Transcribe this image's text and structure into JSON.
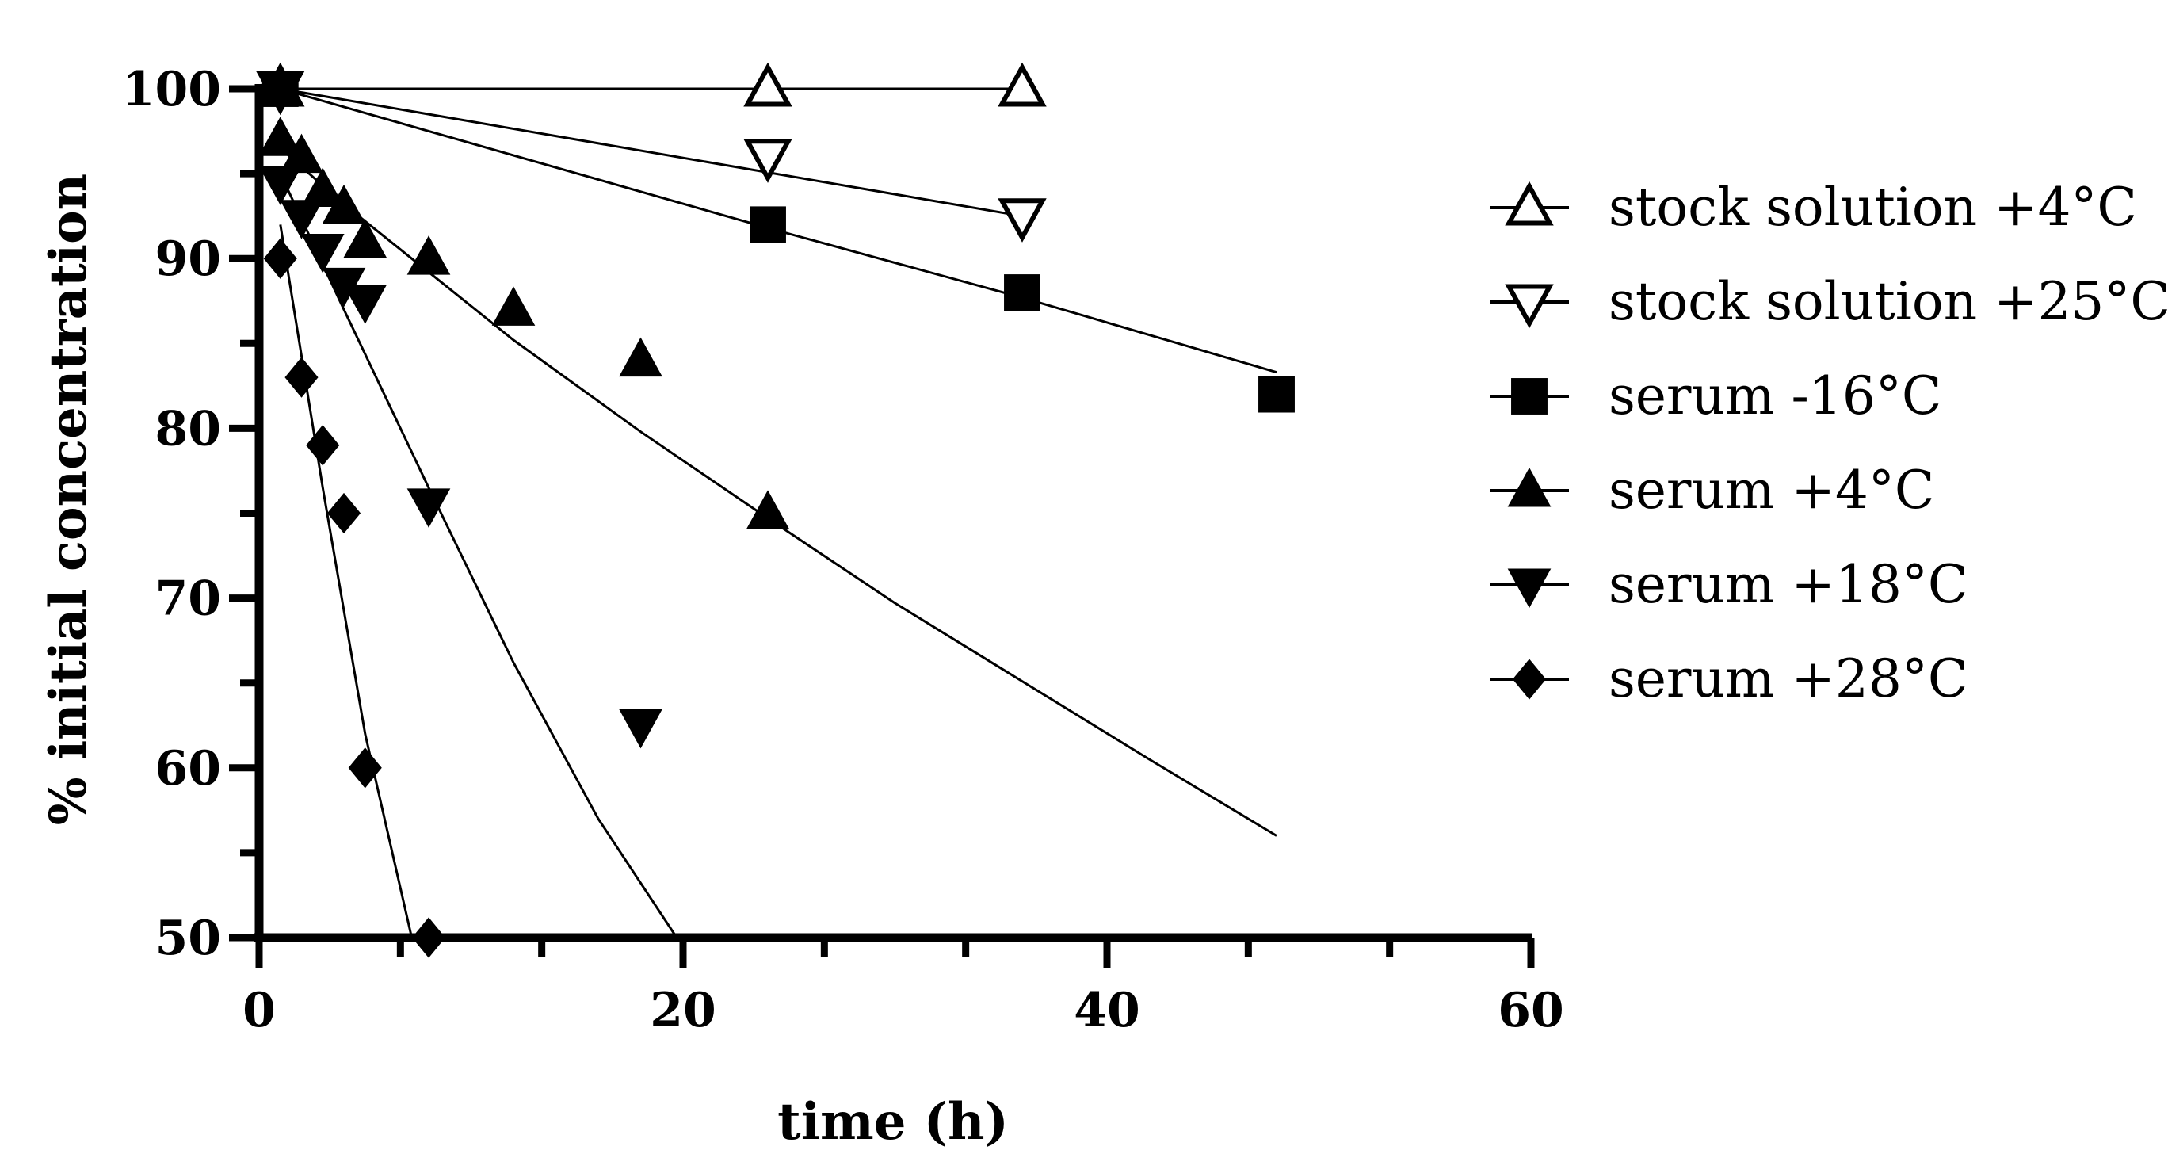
{
  "chart_data": {
    "type": "scatter",
    "title": "",
    "xlabel": "time  (h)",
    "ylabel": "% initial concentration",
    "xlim": [
      0,
      60
    ],
    "ylim": [
      50,
      100
    ],
    "x_ticks": [
      0,
      20,
      40,
      60
    ],
    "x_tick_labels": [
      "0",
      "20",
      "40",
      "60"
    ],
    "y_ticks": [
      50,
      60,
      70,
      80,
      90,
      100
    ],
    "y_tick_labels": [
      "50",
      "60",
      "70",
      "80",
      "90",
      "100"
    ],
    "legend_position": "right",
    "series": [
      {
        "name": "stock solution +4°C",
        "marker": "triangle-up-open",
        "x": [
          1,
          24,
          36
        ],
        "y": [
          100,
          100,
          100
        ],
        "fit": {
          "x": [
            0,
            36
          ],
          "y": [
            100,
            100
          ]
        }
      },
      {
        "name": "stock solution +25°C",
        "marker": "triangle-down-open",
        "x": [
          1,
          24,
          36
        ],
        "y": [
          100,
          96,
          92.5
        ],
        "fit": {
          "x": [
            1,
            36
          ],
          "y": [
            100,
            92.5
          ]
        }
      },
      {
        "name": "serum -16°C",
        "marker": "square",
        "x": [
          1,
          24,
          36,
          48
        ],
        "y": [
          100,
          92,
          88,
          82
        ],
        "fit": {
          "x": [
            1,
            24,
            36,
            48
          ],
          "y": [
            100,
            91.8,
            87.7,
            83.3
          ]
        }
      },
      {
        "name": "serum +4°C",
        "marker": "triangle-up",
        "x": [
          1,
          2,
          3,
          4,
          5,
          8,
          12,
          18,
          24
        ],
        "y": [
          97,
          96,
          94,
          93,
          91,
          90,
          87,
          84,
          75
        ],
        "fit": {
          "x": [
            1,
            4,
            8,
            12,
            18,
            24,
            30,
            36,
            42,
            48
          ],
          "y": [
            96.5,
            93.2,
            89.2,
            85.2,
            79.8,
            74.7,
            69.7,
            65.1,
            60.5,
            56
          ]
        }
      },
      {
        "name": "serum +18°C",
        "marker": "triangle-down",
        "x": [
          1,
          2,
          3,
          4,
          5,
          8,
          18
        ],
        "y": [
          94.5,
          92.5,
          90.5,
          88.5,
          87.5,
          75.5,
          62.5
        ],
        "fit": {
          "x": [
            1,
            4,
            8,
            12,
            16,
            19.7
          ],
          "y": [
            95,
            87,
            76.5,
            66.2,
            57,
            50
          ]
        }
      },
      {
        "name": "serum +28°C",
        "marker": "diamond",
        "x": [
          1,
          2,
          3,
          4,
          5,
          8
        ],
        "y": [
          90,
          83,
          79,
          75,
          60,
          50
        ],
        "fit": {
          "x": [
            1,
            3,
            5,
            7.2
          ],
          "y": [
            92,
            76.5,
            62,
            50
          ]
        }
      }
    ]
  }
}
